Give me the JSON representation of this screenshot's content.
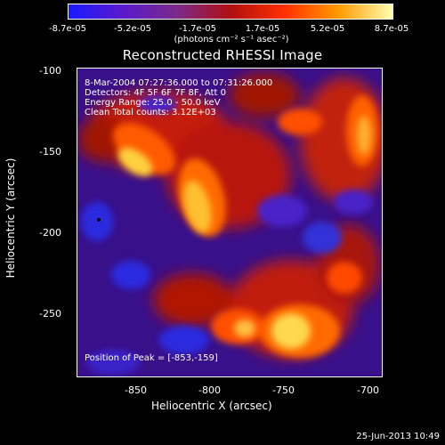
{
  "colorbar": {
    "ticks": [
      "-8.7e-05",
      "-5.2e-05",
      "-1.7e-05",
      "1.7e-05",
      "5.2e-05",
      "8.7e-05"
    ],
    "units": "(photons cm⁻² s⁻¹ asec⁻²)",
    "colors": [
      "#1a1aff",
      "#5a1acc",
      "#7a2a8a",
      "#b01010",
      "#ff3000",
      "#ff9a00",
      "#ffffb0"
    ]
  },
  "title": "Reconstructed RHESSI Image",
  "info": {
    "line1": "8-Mar-2004 07:27:36.000 to 07:31:26.000",
    "line2": "Detectors: 4F 5F 6F 7F 8F, Att 0",
    "line3": "Energy Range: 25.0 - 50.0 keV",
    "line4": "Clean     Total counts: 3.12E+03",
    "peak": "Position of Peak = [-853,-159]"
  },
  "axes": {
    "xlabel": "Heliocentric X (arcsec)",
    "ylabel": "Heliocentric Y (arcsec)",
    "xticks": [
      "-850",
      "-800",
      "-750",
      "-700"
    ],
    "yticks": [
      "-100",
      "-150",
      "-200",
      "-250"
    ]
  },
  "footer": {
    "date": "25-Jun-2013 10:49"
  }
}
